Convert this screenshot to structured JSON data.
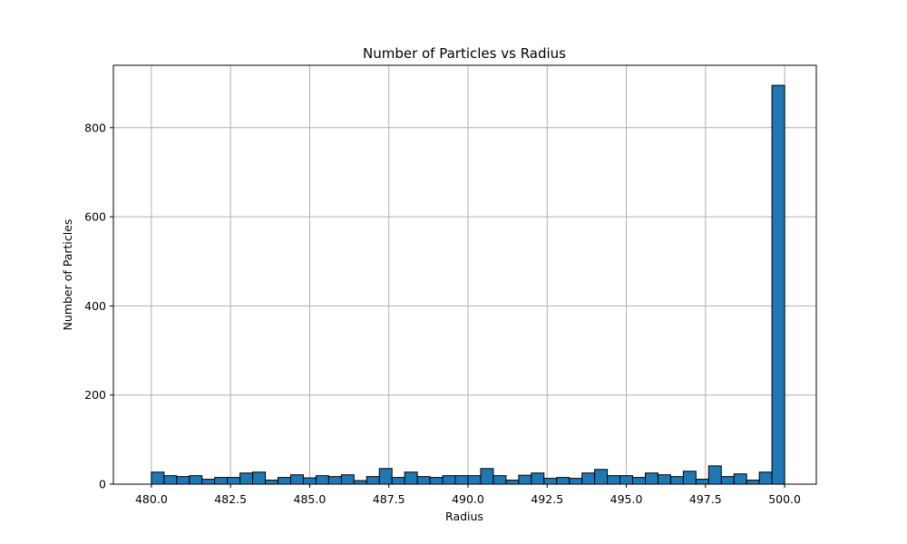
{
  "chart_data": {
    "type": "bar",
    "title": "Number of Particles vs Radius",
    "xlabel": "Radius",
    "ylabel": "Number of Particles",
    "xlim": [
      478.8,
      501.0
    ],
    "ylim": [
      0,
      940
    ],
    "xticks": [
      480.0,
      482.5,
      485.0,
      487.5,
      490.0,
      492.5,
      495.0,
      497.5,
      500.0
    ],
    "xtick_labels": [
      "480.0",
      "482.5",
      "485.0",
      "487.5",
      "490.0",
      "492.5",
      "495.0",
      "497.5",
      "500.0"
    ],
    "yticks": [
      0,
      200,
      400,
      600,
      800
    ],
    "ytick_labels": [
      "0",
      "200",
      "400",
      "600",
      "800"
    ],
    "grid": true,
    "bar_color": "#1f77b4",
    "edge_color": "#000000",
    "bin_edges": [
      480.0,
      480.4,
      480.8,
      481.2,
      481.6,
      482.0,
      482.4,
      482.8,
      483.2,
      483.6,
      484.0,
      484.4,
      484.8,
      485.2,
      485.6,
      486.0,
      486.4,
      486.8,
      487.2,
      487.6,
      488.0,
      488.4,
      488.8,
      489.2,
      489.6,
      490.0,
      490.4,
      490.8,
      491.2,
      491.6,
      492.0,
      492.4,
      492.8,
      493.2,
      493.6,
      494.0,
      494.4,
      494.8,
      495.2,
      495.6,
      496.0,
      496.4,
      496.8,
      497.2,
      497.6,
      498.0,
      498.4,
      498.8,
      499.2,
      499.6,
      500.0
    ],
    "values": [
      27,
      19,
      17,
      19,
      11,
      15,
      15,
      25,
      27,
      9,
      15,
      21,
      14,
      19,
      17,
      21,
      8,
      17,
      35,
      15,
      27,
      17,
      15,
      19,
      19,
      19,
      35,
      19,
      9,
      20,
      25,
      13,
      15,
      13,
      25,
      33,
      19,
      19,
      15,
      25,
      21,
      17,
      29,
      11,
      41,
      17,
      23,
      9,
      27,
      895
    ]
  }
}
